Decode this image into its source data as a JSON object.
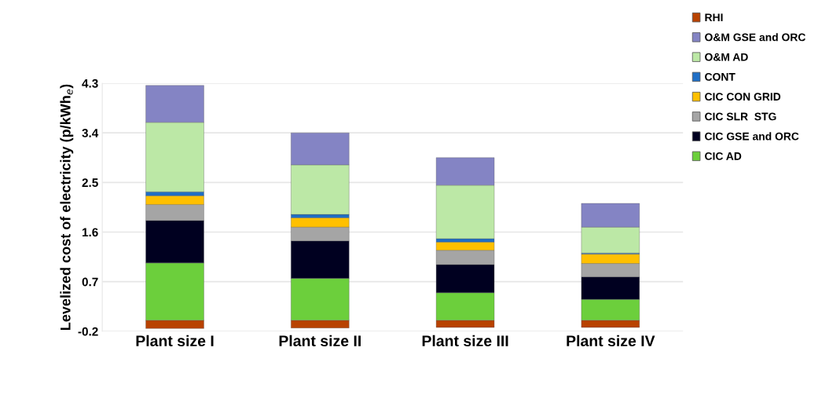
{
  "chart_data": {
    "type": "bar",
    "stacked": true,
    "ylabel": "Levelized cost of electricity (p/kWh$_{e}$)",
    "categories": [
      "Plant size I",
      "Plant size II",
      "Plant size III",
      "Plant size IV"
    ],
    "series": [
      {
        "name": "RHI",
        "color": "#b84200",
        "values": [
          -0.15,
          -0.14,
          -0.13,
          -0.13
        ]
      },
      {
        "name": "CIC AD",
        "color": "#6ccf3c",
        "values": [
          1.04,
          0.76,
          0.5,
          0.38
        ]
      },
      {
        "name": "CIC GSE and ORC",
        "color": "#000020",
        "values": [
          0.77,
          0.68,
          0.51,
          0.41
        ]
      },
      {
        "name": "CIC SLR  STG",
        "color": "#a5a5a5",
        "values": [
          0.29,
          0.25,
          0.26,
          0.24
        ]
      },
      {
        "name": "CIC CON GRID",
        "color": "#ffc000",
        "values": [
          0.16,
          0.17,
          0.15,
          0.17
        ]
      },
      {
        "name": "CONT",
        "color": "#1f6fc6",
        "values": [
          0.07,
          0.06,
          0.06,
          0.02
        ]
      },
      {
        "name": "O&M AD",
        "color": "#bce8a6",
        "values": [
          1.26,
          0.9,
          0.97,
          0.47
        ]
      },
      {
        "name": "O&M GSE and ORC",
        "color": "#8484c4",
        "values": [
          0.67,
          0.58,
          0.5,
          0.43
        ]
      }
    ],
    "ylim": [
      -0.2,
      4.3
    ],
    "yticks": [
      -0.2,
      0.7,
      1.6,
      2.5,
      3.4,
      4.3
    ],
    "grid": "y",
    "legend": "right"
  }
}
